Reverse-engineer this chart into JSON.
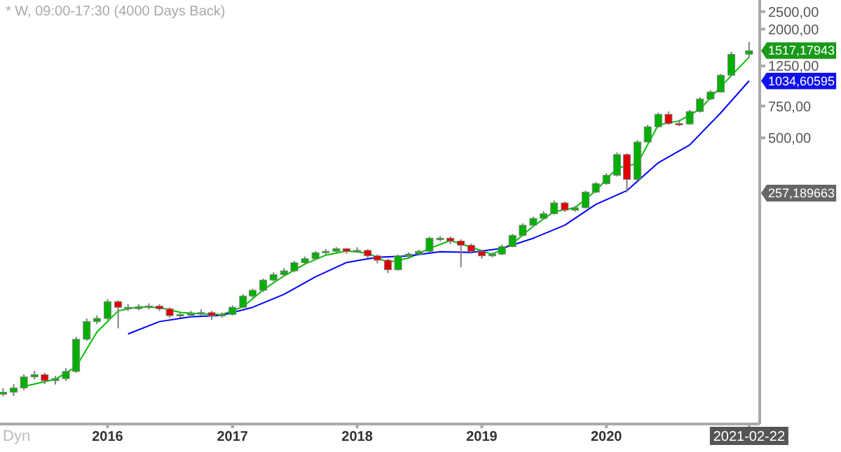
{
  "chart_data": {
    "type": "candlestick",
    "title": "* W, 09:00-17:30 (4000 Days Back)",
    "x": [
      "2015-03",
      "2015-04",
      "2015-05",
      "2015-06",
      "2015-07",
      "2015-08",
      "2015-09",
      "2015-10",
      "2015-11",
      "2015-12",
      "2016-01",
      "2016-02",
      "2016-03",
      "2016-04",
      "2016-05",
      "2016-06",
      "2016-07",
      "2016-08",
      "2016-09",
      "2016-10",
      "2016-11",
      "2016-12",
      "2017-01",
      "2017-02",
      "2017-03",
      "2017-04",
      "2017-05",
      "2017-06",
      "2017-07",
      "2017-08",
      "2017-09",
      "2017-10",
      "2017-11",
      "2017-12",
      "2018-01",
      "2018-02",
      "2018-03",
      "2018-04",
      "2018-05",
      "2018-06",
      "2018-07",
      "2018-08",
      "2018-09",
      "2018-10",
      "2018-11",
      "2018-12",
      "2019-01",
      "2019-02",
      "2019-03",
      "2019-04",
      "2019-05",
      "2019-06",
      "2019-07",
      "2019-08",
      "2019-09",
      "2019-10",
      "2019-11",
      "2019-12",
      "2020-01",
      "2020-02",
      "2020-03",
      "2020-04",
      "2020-05",
      "2020-06",
      "2020-07",
      "2020-08",
      "2020-09",
      "2020-10",
      "2020-11",
      "2020-12",
      "2021-01",
      "2021-02-22"
    ],
    "ohlc": [
      [
        19,
        20.5,
        18.5,
        19.5
      ],
      [
        19.5,
        21.6,
        18.6,
        20.6
      ],
      [
        20.6,
        24.5,
        20,
        23.7
      ],
      [
        23.7,
        25.6,
        23,
        24.4
      ],
      [
        24.4,
        25,
        21.6,
        22.6
      ],
      [
        22.6,
        24,
        21.5,
        23.2
      ],
      [
        23.2,
        26.5,
        22.5,
        25.4
      ],
      [
        25.4,
        39.5,
        25,
        38.3
      ],
      [
        38.3,
        50,
        37.5,
        48
      ],
      [
        48,
        52,
        46.5,
        50
      ],
      [
        50,
        64,
        49,
        61.9
      ],
      [
        61.9,
        63,
        44,
        57.6
      ],
      [
        57.6,
        60,
        55,
        57.6
      ],
      [
        57.6,
        60,
        55.5,
        57.6
      ],
      [
        57.6,
        60.5,
        56,
        58.5
      ],
      [
        58.5,
        60,
        55,
        56.5
      ],
      [
        56.5,
        57.5,
        50.5,
        51.8
      ],
      [
        51.8,
        54,
        50.5,
        52.5
      ],
      [
        52.5,
        55,
        51,
        53
      ],
      [
        53,
        56,
        52,
        53.8
      ],
      [
        53.8,
        55,
        49,
        51.8
      ],
      [
        51.8,
        54,
        50.5,
        52.5
      ],
      [
        52.5,
        59,
        52,
        57.6
      ],
      [
        57.6,
        68,
        57,
        66.5
      ],
      [
        66.5,
        73,
        65,
        71.5
      ],
      [
        71.5,
        83,
        70,
        81.5
      ],
      [
        81.5,
        90,
        80,
        87.3
      ],
      [
        87.3,
        95,
        86,
        91.7
      ],
      [
        91.7,
        104,
        90,
        101.8
      ],
      [
        101.8,
        110,
        100,
        107
      ],
      [
        107,
        118,
        105,
        115.6
      ],
      [
        115.6,
        121,
        113,
        117.6
      ],
      [
        117.6,
        124,
        116,
        121.6
      ],
      [
        121.6,
        123,
        114,
        117.6
      ],
      [
        117.6,
        124,
        116,
        119
      ],
      [
        119,
        121,
        108,
        111
      ],
      [
        111,
        113,
        101,
        105
      ],
      [
        105,
        107,
        89,
        93
      ],
      [
        93,
        113,
        92,
        111
      ],
      [
        111,
        116,
        109,
        113.5
      ],
      [
        113.5,
        120,
        112,
        117.6
      ],
      [
        117.6,
        142,
        116,
        139
      ],
      [
        139,
        143,
        134,
        139
      ],
      [
        139,
        142,
        129,
        134
      ],
      [
        134,
        137,
        96,
        127
      ],
      [
        127,
        130,
        114,
        117.6
      ],
      [
        117.6,
        120,
        107,
        111
      ],
      [
        111,
        116,
        109,
        113.5
      ],
      [
        113.5,
        128,
        112,
        125
      ],
      [
        125,
        147,
        124,
        144
      ],
      [
        144,
        168,
        142,
        164
      ],
      [
        164,
        183,
        161,
        179
      ],
      [
        179,
        196,
        176,
        190
      ],
      [
        190,
        225,
        188,
        218
      ],
      [
        218,
        222,
        194,
        199
      ],
      [
        199,
        210,
        195,
        205
      ],
      [
        205,
        255,
        203,
        250
      ],
      [
        250,
        285,
        247,
        279
      ],
      [
        279,
        318,
        275,
        310
      ],
      [
        310,
        415,
        305,
        404
      ],
      [
        404,
        410,
        250,
        294
      ],
      [
        294,
        485,
        290,
        474
      ],
      [
        474,
        590,
        470,
        576
      ],
      [
        576,
        690,
        570,
        675
      ],
      [
        675,
        700,
        590,
        600
      ],
      [
        600,
        630,
        580,
        597
      ],
      [
        597,
        715,
        590,
        700
      ],
      [
        700,
        840,
        690,
        821
      ],
      [
        821,
        920,
        810,
        897
      ],
      [
        897,
        1130,
        890,
        1110
      ],
      [
        1110,
        1500,
        1100,
        1450
      ],
      [
        1450,
        1700,
        1390,
        1517.17943
      ]
    ],
    "series": [
      {
        "type": "line",
        "color": "#00c000",
        "x": [
          "2015-05",
          "2015-08",
          "2015-10",
          "2015-12",
          "2016-02",
          "2016-04",
          "2016-06",
          "2016-08",
          "2016-10",
          "2016-12",
          "2017-02",
          "2017-04",
          "2017-06",
          "2017-08",
          "2017-10",
          "2017-12",
          "2018-02",
          "2018-04",
          "2018-06",
          "2018-08",
          "2018-10",
          "2018-12",
          "2019-02",
          "2019-04",
          "2019-06",
          "2019-08",
          "2019-10",
          "2019-12",
          "2020-02",
          "2020-04",
          "2020-06",
          "2020-08",
          "2020-10",
          "2020-12",
          "2021-02-22"
        ],
        "values": [
          21,
          23,
          27,
          42,
          55,
          58,
          57.5,
          54,
          53,
          52.5,
          58,
          72,
          86,
          100,
          112,
          118,
          115,
          102,
          108,
          122,
          135,
          124,
          113,
          130,
          162,
          195,
          205,
          255,
          340,
          360,
          590,
          620,
          720,
          960,
          1400
        ]
      },
      {
        "type": "line",
        "color": "#0000ff",
        "x": [
          "2016-03",
          "2016-06",
          "2016-09",
          "2016-12",
          "2017-03",
          "2017-06",
          "2017-09",
          "2017-12",
          "2018-03",
          "2018-06",
          "2018-09",
          "2018-12",
          "2019-03",
          "2019-06",
          "2019-09",
          "2019-12",
          "2020-03",
          "2020-06",
          "2020-09",
          "2020-12",
          "2021-02-22"
        ],
        "values": [
          41,
          48,
          51,
          52,
          57.6,
          68,
          85,
          102,
          109,
          111,
          117,
          116,
          122,
          139,
          164,
          214,
          255,
          364,
          457,
          688,
          1034.60595
        ]
      }
    ],
    "xlim": [
      "2015-02-20",
      "2021-03-25"
    ],
    "xticks": [
      {
        "value": "2016",
        "label": "2016"
      },
      {
        "value": "2017",
        "label": "2017"
      },
      {
        "value": "2018",
        "label": "2018"
      },
      {
        "value": "2019",
        "label": "2019"
      },
      {
        "value": "2020",
        "label": "2020"
      },
      {
        "value": "2021-02-22",
        "label": "2021-02-22"
      }
    ],
    "ylim": [
      13,
      2900
    ],
    "yticks": [
      {
        "value": 500,
        "label": "500,00"
      },
      {
        "value": 750,
        "label": "750,00"
      },
      {
        "value": 1250,
        "label": "1250,00"
      },
      {
        "value": 2000,
        "label": "2000,00"
      },
      {
        "value": 2500,
        "label": "2500,00"
      }
    ],
    "log": true,
    "grid": false,
    "legend": false,
    "annotations": [
      {
        "text": "1517,17943",
        "x": "2021-02-22",
        "y": 1517.17943
      },
      {
        "text": "1034,60595",
        "x": "2021-02-22",
        "y": 1034.60595
      },
      "257,189663",
      "Dyn"
    ]
  }
}
